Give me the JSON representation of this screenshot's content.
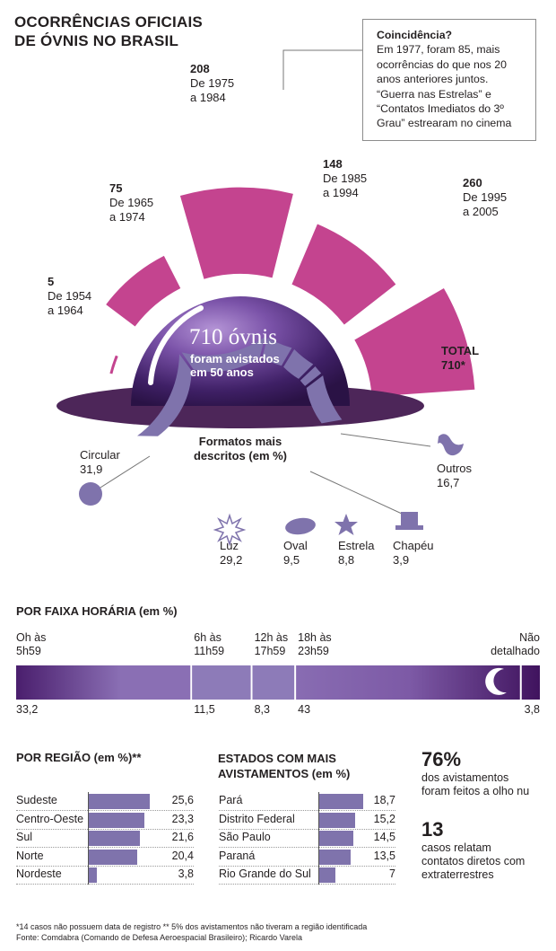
{
  "title": [
    "OCORRÊNCIAS OFICIAIS",
    "DE ÓVNIS NO BRASIL"
  ],
  "coincidence": {
    "head": "Coincidência?",
    "lines": [
      "Em 1977, foram 85, mais",
      "ocorrências do que nos 20",
      "anos anteriores juntos.",
      "“Guerra nas Estrelas” e",
      "“Contatos Imediatos do 3º",
      "Grau” estrearam no cinema"
    ]
  },
  "dome": {
    "big": "710 óvnis",
    "line1": "foram avistados",
    "line2": "em 50 anos"
  },
  "total": {
    "line1": "TOTAL",
    "line2": "710*"
  },
  "colors": {
    "magenta": "#c4448f",
    "purple": "#4d2659",
    "lavender": "#7f73ac",
    "bar_dark": "#5a2474"
  },
  "chart_data": [
    {
      "type": "bar",
      "title": "",
      "categories": [
        "De 1954 a 1964",
        "De 1965 a 1974",
        "De 1975 a 1984",
        "De 1985 a 1994",
        "De 1995 a 2005"
      ],
      "values": [
        5,
        75,
        208,
        148,
        260
      ],
      "labels": [
        {
          "num": "5",
          "l1": "De 1954",
          "l2": "a 1964"
        },
        {
          "num": "75",
          "l1": "De 1965",
          "l2": "a 1974"
        },
        {
          "num": "208",
          "l1": "De 1975",
          "l2": "a 1984"
        },
        {
          "num": "148",
          "l1": "De 1985",
          "l2": "a 1994"
        },
        {
          "num": "260",
          "l1": "De 1995",
          "l2": "a 2005"
        }
      ]
    },
    {
      "type": "pie",
      "title": "Formatos mais descritos (em %)",
      "title_lines": [
        "Formatos mais",
        "descritos (em %)"
      ],
      "categories": [
        "Circular",
        "Luz",
        "Oval",
        "Estrela",
        "Chapéu",
        "Outros"
      ],
      "values": [
        31.9,
        29.2,
        9.5,
        8.8,
        3.9,
        16.7
      ],
      "value_labels": [
        "31,9",
        "29,2",
        "9,5",
        "8,8",
        "3,9",
        "16,7"
      ]
    },
    {
      "type": "bar",
      "title": "POR FAIXA HORÁRIA (em %)",
      "categories": [
        "Oh às 5h59",
        "6h às 11h59",
        "12h às 17h59",
        "18h às 23h59",
        "Não detalhado"
      ],
      "cat_lines": [
        [
          "Oh às",
          "5h59"
        ],
        [
          "6h às",
          "11h59"
        ],
        [
          "12h às",
          "17h59"
        ],
        [
          "18h às",
          "23h59"
        ],
        [
          "Não",
          "detalhado"
        ]
      ],
      "values": [
        33.2,
        11.5,
        8.3,
        43,
        3.8
      ],
      "value_labels": [
        "33,2",
        "11,5",
        "8,3",
        "43",
        "3,8"
      ]
    },
    {
      "type": "bar",
      "title": "POR REGIÃO (em %)**",
      "categories": [
        "Sudeste",
        "Centro-Oeste",
        "Sul",
        "Norte",
        "Nordeste"
      ],
      "values": [
        25.6,
        23.3,
        21.6,
        20.4,
        3.8
      ],
      "value_labels": [
        "25,6",
        "23,3",
        "21,6",
        "20,4",
        "3,8"
      ]
    },
    {
      "type": "bar",
      "title": "ESTADOS COM MAIS AVISTAMENTOS (em %)",
      "title_lines": [
        "ESTADOS COM MAIS",
        "AVISTAMENTOS (em %)"
      ],
      "categories": [
        "Pará",
        "Distrito Federal",
        "São Paulo",
        "Paraná",
        "Rio Grande do Sul"
      ],
      "values": [
        18.7,
        15.2,
        14.5,
        13.5,
        7
      ],
      "value_labels": [
        "18,7",
        "15,2",
        "14,5",
        "13,5",
        "7"
      ]
    }
  ],
  "stats": [
    {
      "big": "76%",
      "l1": "dos avistamentos",
      "l2": "foram feitos a olho nu"
    },
    {
      "big": "13",
      "l1": "casos relatam",
      "l2": "contatos diretos com",
      "l3": "extraterrestres"
    }
  ],
  "footnotes": [
    "*14 casos não possuem data de registro   ** 5% dos avistamentos não tiveram a região identificada",
    "Fonte: Comdabra (Comando de Defesa Aeroespacial Brasileiro); Ricardo Varela"
  ]
}
